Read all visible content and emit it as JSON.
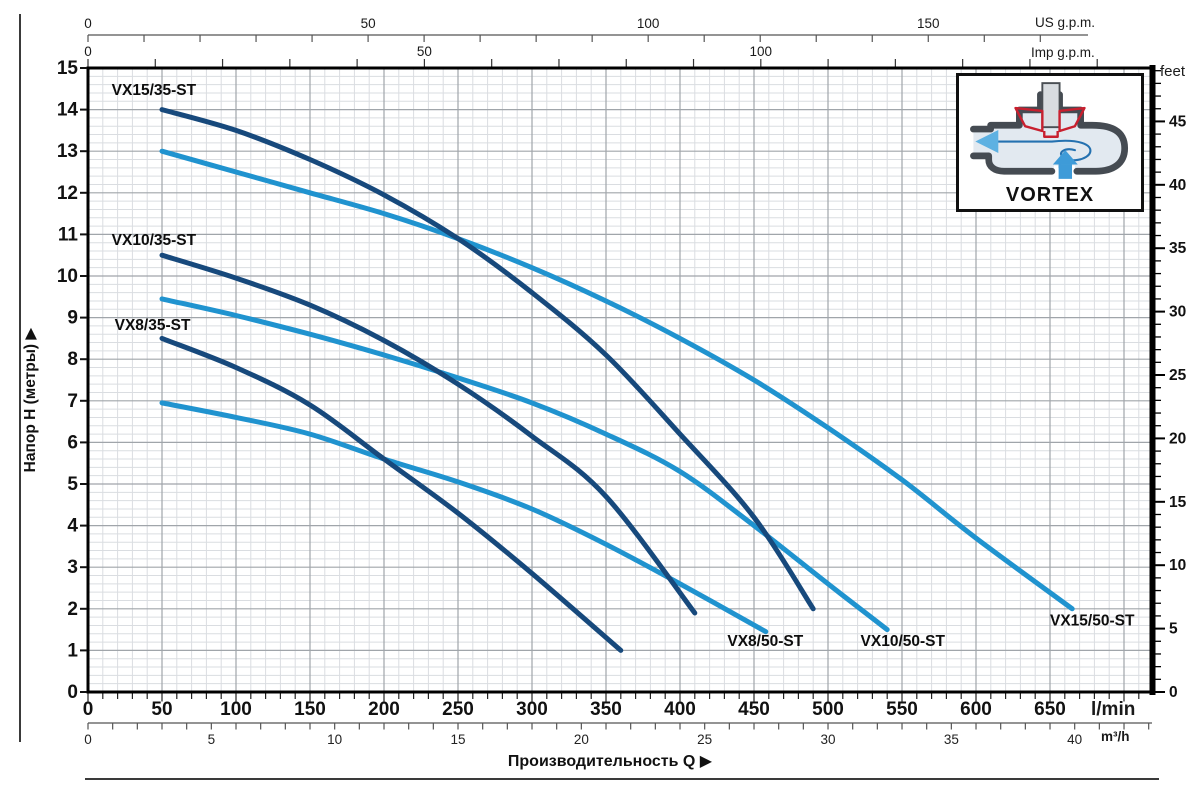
{
  "page": {
    "y_axis_title": "Напор H (метры)  ▶",
    "x_axis_title": "Производительность Q  ▶",
    "inset_caption": "VORTEX"
  },
  "units": {
    "us": "US g.p.m.",
    "imp": "Imp g.p.m.",
    "feet": "feet",
    "lmin": "l/min",
    "m3h": "m³/h"
  },
  "chart_data": {
    "type": "line",
    "title": "",
    "x_title": "Производительность Q",
    "y_title": "Напор H (метры)",
    "grid": true,
    "x_axis": {
      "unit": "l/min",
      "min": 0,
      "max": 719,
      "major_tick": 50,
      "minor_tick": 10,
      "labels": [
        0,
        50,
        100,
        150,
        200,
        250,
        300,
        350,
        400,
        450,
        500,
        550,
        600,
        650
      ]
    },
    "x_axis_m3h": {
      "unit": "m³/h",
      "lmin_per_unit": 16.667,
      "minor_tick": 1,
      "labels": [
        0,
        5,
        10,
        15,
        20,
        25,
        30,
        35,
        40
      ]
    },
    "x_axis_us_gpm": {
      "unit": "US g.p.m.",
      "lmin_per_unit": 3.785,
      "minor_tick": 10,
      "labels": [
        0,
        50,
        100,
        150
      ]
    },
    "x_axis_imp_gpm": {
      "unit": "Imp g.p.m.",
      "lmin_per_unit": 4.546,
      "minor_tick": 10,
      "labels": [
        0,
        50,
        100
      ]
    },
    "y_axis": {
      "unit": "м",
      "min": 0,
      "max": 15,
      "major_tick": 1,
      "minor_tick": 0.2,
      "labels": [
        0,
        1,
        2,
        3,
        4,
        5,
        6,
        7,
        8,
        9,
        10,
        11,
        12,
        13,
        14,
        15
      ]
    },
    "y_axis_feet": {
      "unit": "feet",
      "m_per_unit": 0.3048,
      "major_tick": 5,
      "minor_tick": 1,
      "labels": [
        0,
        5,
        10,
        15,
        20,
        25,
        30,
        35,
        40,
        45
      ]
    },
    "colors": {
      "dark": "#17497c",
      "light": "#2093cf"
    },
    "series": [
      {
        "name": "VX15/35-ST",
        "color": "dark",
        "label_at": {
          "q": 16,
          "h": 14.35,
          "anchor": "start"
        },
        "points": [
          [
            50,
            14
          ],
          [
            100,
            13.5
          ],
          [
            150,
            12.8
          ],
          [
            200,
            11.95
          ],
          [
            250,
            10.9
          ],
          [
            300,
            9.6
          ],
          [
            350,
            8.1
          ],
          [
            400,
            6.2
          ],
          [
            450,
            4.2
          ],
          [
            490,
            2.0
          ]
        ]
      },
      {
        "name": "VX10/35-ST",
        "color": "dark",
        "label_at": {
          "q": 16,
          "h": 10.75,
          "anchor": "start"
        },
        "points": [
          [
            50,
            10.5
          ],
          [
            100,
            9.95
          ],
          [
            150,
            9.3
          ],
          [
            200,
            8.45
          ],
          [
            250,
            7.4
          ],
          [
            300,
            6.15
          ],
          [
            350,
            4.7
          ],
          [
            410,
            1.9
          ]
        ]
      },
      {
        "name": "VX8/35-ST",
        "color": "dark",
        "label_at": {
          "q": 18,
          "h": 8.7,
          "anchor": "start"
        },
        "points": [
          [
            50,
            8.5
          ],
          [
            100,
            7.8
          ],
          [
            150,
            6.9
          ],
          [
            200,
            5.6
          ],
          [
            250,
            4.3
          ],
          [
            300,
            2.85
          ],
          [
            360,
            1.0
          ]
        ]
      },
      {
        "name": "VX8/50-ST",
        "color": "light",
        "label_at": {
          "q": 432,
          "h": 1.1,
          "anchor": "start"
        },
        "points": [
          [
            50,
            6.95
          ],
          [
            100,
            6.6
          ],
          [
            150,
            6.2
          ],
          [
            200,
            5.6
          ],
          [
            250,
            5.05
          ],
          [
            300,
            4.4
          ],
          [
            350,
            3.55
          ],
          [
            400,
            2.6
          ],
          [
            458,
            1.45
          ]
        ]
      },
      {
        "name": "VX10/50-ST",
        "color": "light",
        "label_at": {
          "q": 522,
          "h": 1.1,
          "anchor": "start"
        },
        "points": [
          [
            50,
            9.45
          ],
          [
            100,
            9.05
          ],
          [
            150,
            8.6
          ],
          [
            200,
            8.1
          ],
          [
            250,
            7.55
          ],
          [
            300,
            6.95
          ],
          [
            350,
            6.2
          ],
          [
            400,
            5.3
          ],
          [
            450,
            4.0
          ],
          [
            500,
            2.6
          ],
          [
            540,
            1.5
          ]
        ]
      },
      {
        "name": "VX15/50-ST",
        "color": "light",
        "label_at": {
          "q": 650,
          "h": 1.6,
          "anchor": "start"
        },
        "points": [
          [
            50,
            13
          ],
          [
            100,
            12.5
          ],
          [
            150,
            12
          ],
          [
            200,
            11.5
          ],
          [
            250,
            10.9
          ],
          [
            300,
            10.2
          ],
          [
            350,
            9.4
          ],
          [
            400,
            8.5
          ],
          [
            450,
            7.5
          ],
          [
            500,
            6.35
          ],
          [
            550,
            5.1
          ],
          [
            600,
            3.7
          ],
          [
            665,
            2.0
          ]
        ]
      }
    ]
  }
}
